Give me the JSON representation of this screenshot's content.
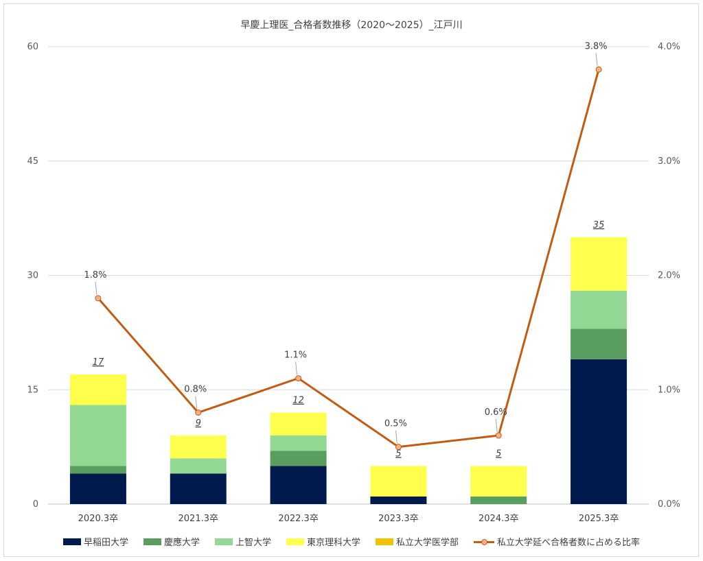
{
  "chart_data": {
    "type": "bar",
    "stacked": true,
    "title": "早慶上理医_合格者数推移（2020～2025）_江戸川",
    "categories": [
      "2020.3卒",
      "2021.3卒",
      "2022.3卒",
      "2023.3卒",
      "2024.3卒",
      "2025.3卒"
    ],
    "series": [
      {
        "name": "早稲田大学",
        "color": "#001a4d",
        "values": [
          4,
          4,
          5,
          1,
          0,
          19
        ]
      },
      {
        "name": "慶應大学",
        "color": "#5a9e5f",
        "values": [
          1,
          0,
          2,
          0,
          1,
          4
        ]
      },
      {
        "name": "上智大学",
        "color": "#93d994",
        "values": [
          8,
          2,
          2,
          0,
          0,
          5
        ]
      },
      {
        "name": "東京理科大学",
        "color": "#ffff4d",
        "values": [
          4,
          3,
          3,
          4,
          4,
          7
        ]
      },
      {
        "name": "私立大学医学部",
        "color": "#f2c400",
        "values": [
          0,
          0,
          0,
          0,
          0,
          0
        ]
      }
    ],
    "totals": [
      17,
      9,
      12,
      5,
      5,
      35
    ],
    "line_series": {
      "name": "私立大学延べ合格者数に占める比率",
      "color": "#c55a11",
      "marker_color": "#f4b183",
      "values": [
        0.018,
        0.008,
        0.011,
        0.005,
        0.006,
        0.038
      ],
      "labels": [
        "1.8%",
        "0.8%",
        "1.1%",
        "0.5%",
        "0.6%",
        "3.8%"
      ]
    },
    "y_left": {
      "min": 0,
      "max": 60,
      "ticks": [
        "0",
        "15",
        "30",
        "45",
        "60"
      ]
    },
    "y_right": {
      "min": 0,
      "max": 0.04,
      "ticks": [
        "0.0%",
        "1.0%",
        "2.0%",
        "3.0%",
        "4.0%"
      ]
    },
    "grid": true,
    "legend_position": "bottom"
  }
}
